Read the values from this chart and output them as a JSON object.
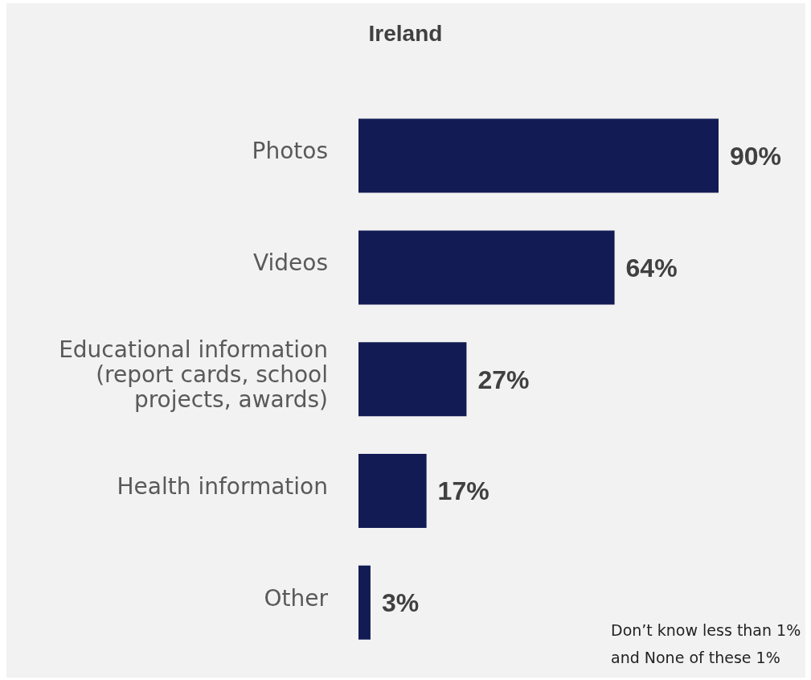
{
  "chart_data": {
    "type": "bar",
    "orientation": "horizontal",
    "title": "Ireland",
    "categories": [
      "Photos",
      "Videos",
      "Educational information (report cards, school projects, awards)",
      "Health information",
      "Other"
    ],
    "values": [
      90,
      64,
      27,
      17,
      3
    ],
    "value_labels": [
      "90%",
      "64%",
      "27%",
      "17%",
      "3%"
    ],
    "color": "#131b54",
    "annotations": [
      "Don’t know less than 1% and None of these 1%"
    ]
  }
}
